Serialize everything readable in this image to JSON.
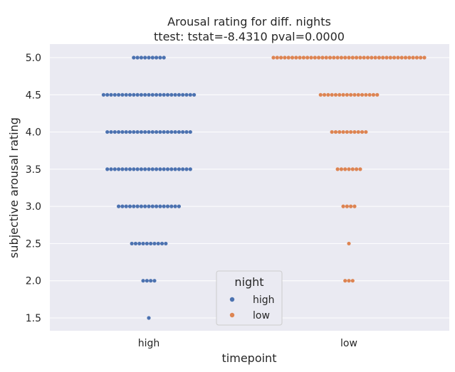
{
  "chart_data": {
    "type": "scatter",
    "subtype": "swarm",
    "title": "Arousal rating for diff. nights",
    "subtitle": "ttest: tstat=-8.4310 pval=0.0000",
    "xlabel": "timepoint",
    "ylabel": "subjective arousal rating",
    "categories": [
      "high",
      "low"
    ],
    "y_ticks": [
      "1.5",
      "2.0",
      "2.5",
      "3.0",
      "3.5",
      "4.0",
      "4.5",
      "5.0"
    ],
    "ylim": [
      1.33,
      5.15
    ],
    "grid": true,
    "legend": {
      "title": "night",
      "placement": "lower-center",
      "entries": [
        "high",
        "low"
      ]
    },
    "series": [
      {
        "name": "high",
        "category": "high",
        "color": "#4c72b0",
        "counts_by_value": [
          {
            "value": 5.0,
            "count": 9
          },
          {
            "value": 4.5,
            "count": 25
          },
          {
            "value": 4.0,
            "count": 23
          },
          {
            "value": 3.5,
            "count": 23
          },
          {
            "value": 3.0,
            "count": 17
          },
          {
            "value": 2.5,
            "count": 10
          },
          {
            "value": 2.0,
            "count": 4
          },
          {
            "value": 1.5,
            "count": 1
          }
        ]
      },
      {
        "name": "low",
        "category": "low",
        "color": "#dd8452",
        "counts_by_value": [
          {
            "value": 5.0,
            "count": 41
          },
          {
            "value": 4.5,
            "count": 16
          },
          {
            "value": 4.0,
            "count": 10
          },
          {
            "value": 3.5,
            "count": 7
          },
          {
            "value": 3.0,
            "count": 4
          },
          {
            "value": 2.5,
            "count": 1
          },
          {
            "value": 2.0,
            "count": 3
          }
        ]
      }
    ]
  }
}
